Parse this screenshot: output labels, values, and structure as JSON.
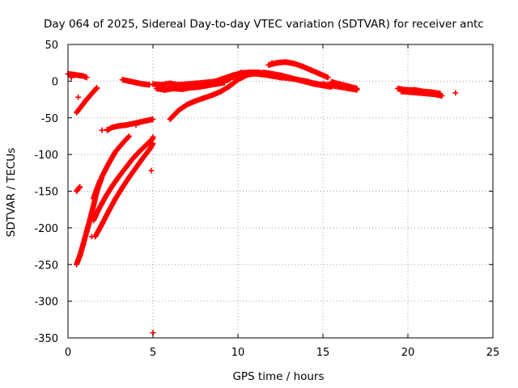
{
  "chart_data": {
    "type": "scatter",
    "title": "Day 064 of 2025, Sidereal Day-to-day VTEC variation (SDTVAR) for receiver antc",
    "xlabel": "GPS time / hours",
    "ylabel": "SDTVAR / TECUs",
    "xlim": [
      0,
      25
    ],
    "ylim": [
      -350,
      50
    ],
    "xticks": [
      0,
      5,
      10,
      15,
      20,
      25
    ],
    "yticks": [
      50,
      0,
      -50,
      -100,
      -150,
      -200,
      -250,
      -300,
      -350
    ],
    "grid": true,
    "legend": "none",
    "marker": "plus",
    "color": "#ff0000",
    "series": [
      {
        "segments": [
          {
            "x": [
              0.0,
              0.3,
              0.6,
              0.9,
              1.1
            ],
            "y": [
              10,
              9,
              8,
              7,
              5
            ]
          },
          {
            "x": [
              0.5,
              0.8,
              1.1,
              1.4,
              1.7
            ],
            "y": [
              -43,
              -34,
              -25,
              -17,
              -9
            ]
          },
          {
            "x": [
              0.5,
              0.7
            ],
            "y": [
              -150,
              -144
            ]
          },
          {
            "x": [
              0.5,
              0.7,
              0.9,
              1.1,
              1.3,
              1.5,
              1.7,
              2.0,
              2.4,
              2.8,
              3.2,
              3.6
            ],
            "y": [
              -250,
              -238,
              -222,
              -205,
              -188,
              -170,
              -150,
              -130,
              -112,
              -96,
              -85,
              -75
            ]
          },
          {
            "x": [
              1.5,
              1.8,
              2.2,
              2.6,
              3.0,
              3.4,
              3.8,
              4.2,
              4.6,
              5.0
            ],
            "y": [
              -190,
              -175,
              -158,
              -143,
              -130,
              -118,
              -106,
              -96,
              -87,
              -78
            ]
          },
          {
            "x": [
              1.6,
              2.0,
              2.4,
              2.8,
              3.2,
              3.6,
              4.0,
              4.4,
              4.8,
              5.0
            ],
            "y": [
              -212,
              -195,
              -177,
              -160,
              -145,
              -131,
              -118,
              -105,
              -93,
              -85
            ]
          },
          {
            "x": [
              1.5,
              1.7,
              1.9
            ],
            "y": [
              -160,
              -147,
              -135
            ]
          },
          {
            "x": [
              2.3,
              2.6,
              3.0,
              3.4,
              3.8,
              4.2,
              4.6,
              5.0
            ],
            "y": [
              -67,
              -63,
              -61,
              -60,
              -58,
              -56,
              -54,
              -52
            ]
          },
          {
            "x": [
              3.2,
              3.6,
              4.0,
              4.4,
              4.8
            ],
            "y": [
              2,
              0,
              -2,
              -4,
              -5
            ]
          },
          {
            "x": [
              5.0,
              5.5,
              6.0,
              6.5,
              7.0,
              7.5,
              8.0,
              8.5,
              9.0,
              9.5
            ],
            "y": [
              -4,
              -5,
              -3,
              -5,
              -4,
              -3,
              -2,
              -1,
              0,
              2
            ]
          },
          {
            "x": [
              5.2,
              5.7,
              6.2,
              6.7,
              7.2,
              7.7,
              8.2,
              8.7,
              9.2
            ],
            "y": [
              -10,
              -12,
              -10,
              -11,
              -9,
              -8,
              -6,
              -4,
              -2
            ]
          },
          {
            "x": [
              6.0,
              6.5,
              7.0,
              7.5,
              8.0,
              8.5,
              9.0,
              9.5,
              10.0,
              10.5,
              11.0
            ],
            "y": [
              -52,
              -40,
              -32,
              -27,
              -23,
              -19,
              -14,
              -7,
              2,
              8,
              12
            ]
          },
          {
            "x": [
              8.2,
              8.7,
              9.2,
              9.7,
              10.2,
              10.7,
              11.2,
              11.7,
              12.2
            ],
            "y": [
              -3,
              0,
              4,
              8,
              11,
              12,
              12,
              10,
              7
            ]
          },
          {
            "x": [
              9.0,
              9.5,
              10.0,
              10.5,
              11.0,
              11.5,
              12.0,
              12.5,
              13.0,
              13.5,
              14.0,
              14.5,
              15.0
            ],
            "y": [
              0,
              4,
              7,
              9,
              10,
              9,
              7,
              5,
              4,
              2,
              0,
              -3,
              -5
            ]
          },
          {
            "x": [
              11.5,
              12.0,
              12.5,
              13.0,
              13.5,
              14.0,
              14.5,
              15.0,
              15.5
            ],
            "y": [
              12,
              10,
              8,
              5,
              2,
              -1,
              -4,
              -6,
              -8
            ]
          },
          {
            "x": [
              11.8,
              12.3,
              12.8,
              13.3,
              13.8,
              14.3,
              14.8,
              15.3
            ],
            "y": [
              22,
              25,
              26,
              24,
              20,
              15,
              10,
              5
            ]
          },
          {
            "x": [
              15.0,
              15.5,
              16.0,
              16.5,
              17.0
            ],
            "y": [
              -4,
              -6,
              -8,
              -10,
              -12
            ]
          },
          {
            "x": [
              15.5,
              16.0,
              16.5,
              17.0
            ],
            "y": [
              -1,
              -4,
              -7,
              -10
            ]
          },
          {
            "x": [
              19.4,
              19.9,
              20.4,
              20.9,
              21.4,
              21.9
            ],
            "y": [
              -10,
              -12,
              -12,
              -14,
              -15,
              -17
            ]
          },
          {
            "x": [
              19.6,
              20.1,
              20.6,
              21.1,
              21.6,
              22.0
            ],
            "y": [
              -14,
              -15,
              -16,
              -17,
              -18,
              -20
            ]
          }
        ],
        "points": {
          "x": [
            0.6,
            1.7,
            2.0,
            4.9,
            5.0,
            5.0,
            4.0,
            2.3,
            1.4,
            22.8,
            0.2,
            0.4,
            10.2,
            12.0
          ],
          "y": [
            -22,
            -10,
            -67,
            -122,
            -343,
            -76,
            -60,
            -66,
            -212,
            -16,
            5,
            8,
            12,
            25
          ]
        }
      }
    ]
  }
}
